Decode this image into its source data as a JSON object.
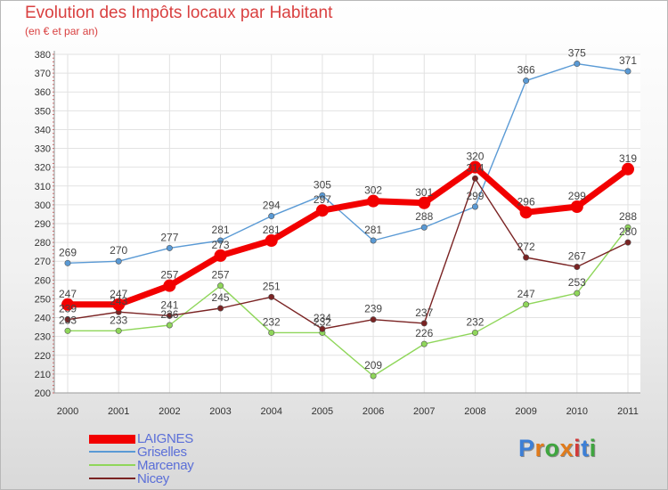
{
  "title": "Evolution des Impôts locaux par Habitant",
  "subtitle": "(en € et par an)",
  "logo": {
    "text": "Proxiti",
    "colors": [
      "#3d7fd6",
      "#e07b1c",
      "#3fa53f",
      "#e07b1c",
      "#d23a3a",
      "#3d7fd6",
      "#3fa53f"
    ]
  },
  "chart_data": {
    "type": "line",
    "x": [
      "2000",
      "2001",
      "2002",
      "2003",
      "2004",
      "2005",
      "2006",
      "2007",
      "2008",
      "2009",
      "2010",
      "2011"
    ],
    "ylim": [
      200,
      380
    ],
    "yticks": [
      200,
      210,
      220,
      230,
      240,
      250,
      260,
      270,
      280,
      290,
      300,
      310,
      320,
      330,
      340,
      350,
      360,
      370,
      380
    ],
    "grid": true,
    "legend_position": "bottom-left",
    "series": [
      {
        "name": "Griselles",
        "color": "#5a9ad5",
        "values": [
          269,
          270,
          277,
          281,
          294,
          305,
          281,
          288,
          299,
          366,
          375,
          371
        ]
      },
      {
        "name": "Marcenay",
        "color": "#8fd65a",
        "values": [
          233,
          233,
          236,
          257,
          232,
          232,
          209,
          226,
          232,
          247,
          253,
          288
        ]
      },
      {
        "name": "Nicey",
        "color": "#7a2323",
        "values": [
          239,
          243,
          241,
          245,
          251,
          234,
          239,
          237,
          314,
          272,
          267,
          280
        ]
      },
      {
        "name": "LAIGNES",
        "color": "#f20000",
        "values": [
          247,
          247,
          257,
          273,
          281,
          297,
          302,
          301,
          320,
          296,
          299,
          319
        ]
      }
    ],
    "legend_order": [
      "LAIGNES",
      "Griselles",
      "Marcenay",
      "Nicey"
    ]
  }
}
